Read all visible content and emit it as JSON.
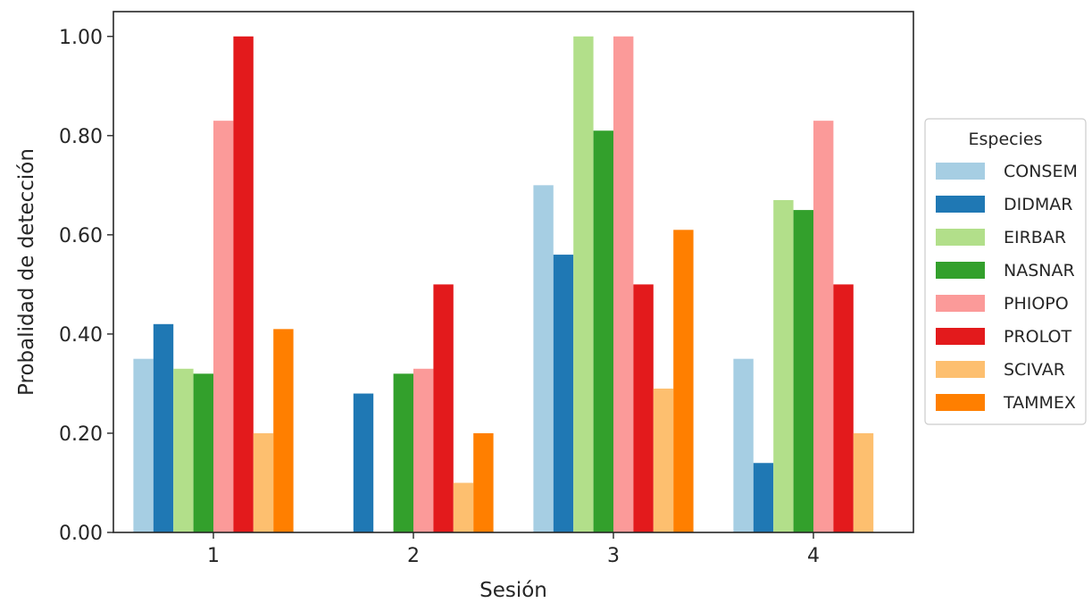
{
  "chart_data": {
    "type": "bar",
    "title": "",
    "xlabel": "Sesión",
    "ylabel": "Probalidad de detección",
    "categories": [
      "1",
      "2",
      "3",
      "4"
    ],
    "ylim": [
      0,
      1.05
    ],
    "yticks": [
      0.0,
      0.2,
      0.4,
      0.6,
      0.8,
      1.0
    ],
    "ytick_labels": [
      "0.00",
      "0.20",
      "0.40",
      "0.60",
      "0.80",
      "1.00"
    ],
    "grid": false,
    "legend": {
      "title": "Especies",
      "placement": "right-outside"
    },
    "series": [
      {
        "name": "CONSEM",
        "color": "#a6cee3",
        "values": [
          0.35,
          0.0,
          0.7,
          0.35
        ]
      },
      {
        "name": "DIDMAR",
        "color": "#1f78b4",
        "values": [
          0.42,
          0.28,
          0.56,
          0.14
        ]
      },
      {
        "name": "EIRBAR",
        "color": "#b2df8a",
        "values": [
          0.33,
          0.0,
          1.0,
          0.67
        ]
      },
      {
        "name": "NASNAR",
        "color": "#33a02c",
        "values": [
          0.32,
          0.32,
          0.81,
          0.65
        ]
      },
      {
        "name": "PHIOPO",
        "color": "#fb9a99",
        "values": [
          0.83,
          0.33,
          1.0,
          0.83
        ]
      },
      {
        "name": "PROLOT",
        "color": "#e31a1c",
        "values": [
          1.0,
          0.5,
          0.5,
          0.5
        ]
      },
      {
        "name": "SCIVAR",
        "color": "#fdbf6f",
        "values": [
          0.2,
          0.1,
          0.29,
          0.2
        ]
      },
      {
        "name": "TAMMEX",
        "color": "#ff7f00",
        "values": [
          0.41,
          0.2,
          0.61,
          0.0
        ]
      }
    ]
  }
}
